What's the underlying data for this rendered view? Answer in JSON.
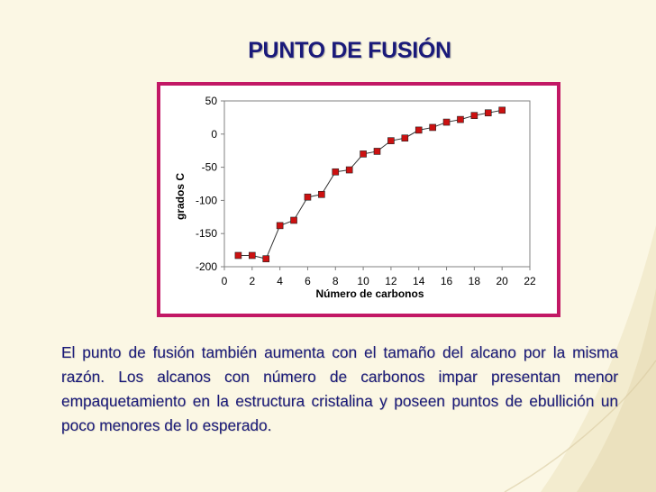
{
  "slide": {
    "title": "PUNTO DE FUSIÓN",
    "body": "El punto de fusión también aumenta con el tamaño del alcano por la misma razón. Los alcanos con número de carbonos impar presentan menor empaquetamiento en la estructura cristalina y poseen puntos de ebullición un poco menores de lo esperado.",
    "colors": {
      "title": "#1a1a7a",
      "body_text": "#1a1a7a",
      "frame": "#c21865",
      "marker": "#cc1111",
      "background": "#fbf7e4"
    }
  },
  "chart_data": {
    "type": "line",
    "title": "",
    "xlabel": "Número de carbonos",
    "ylabel": "grados C",
    "xlim": [
      0,
      22
    ],
    "ylim": [
      -200,
      50
    ],
    "xticks": [
      0,
      2,
      4,
      6,
      8,
      10,
      12,
      14,
      16,
      18,
      20,
      22
    ],
    "yticks": [
      50,
      0,
      -50,
      -100,
      -150,
      -200
    ],
    "grid": false,
    "legend": "none",
    "series": [
      {
        "x": [
          1,
          2,
          3,
          4,
          5,
          6,
          7,
          8,
          9,
          10,
          11,
          12,
          13,
          14,
          15,
          16,
          17,
          18,
          19,
          20
        ],
        "y": [
          -183,
          -183,
          -188,
          -138,
          -130,
          -95,
          -91,
          -57,
          -54,
          -30,
          -26,
          -10,
          -6,
          6,
          10,
          18,
          22,
          28,
          32,
          36
        ],
        "marker": "square",
        "color": "#cc1111"
      }
    ]
  }
}
